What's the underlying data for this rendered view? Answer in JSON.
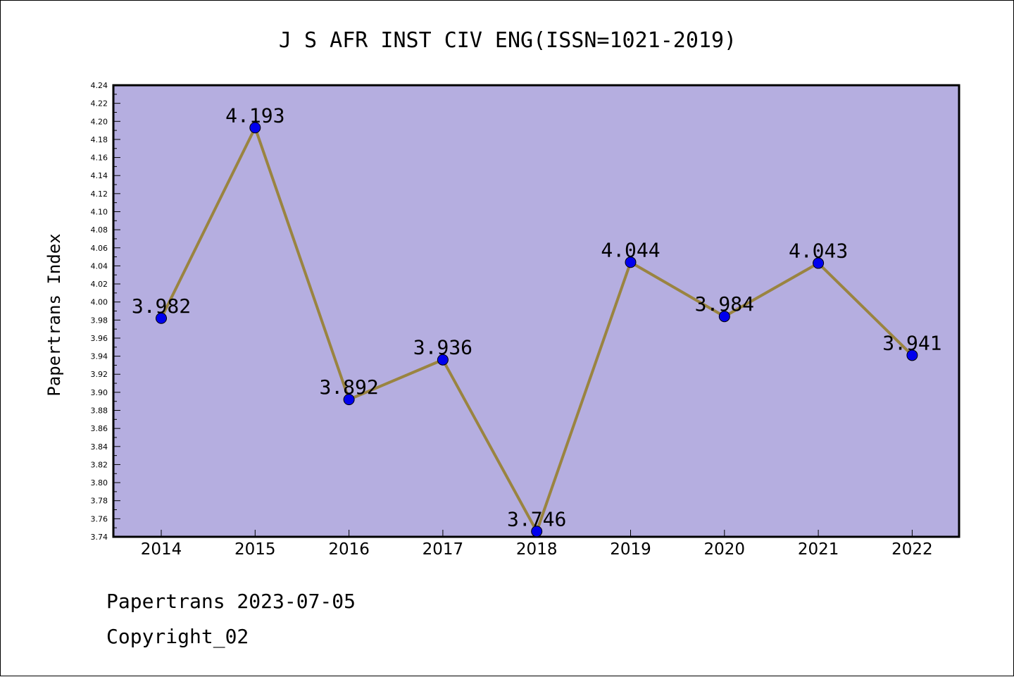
{
  "chart_data": {
    "type": "line",
    "title": "J S AFR INST CIV ENG(ISSN=1021-2019)",
    "xlabel": "",
    "ylabel": "Papertrans Index",
    "categories": [
      "2014",
      "2015",
      "2016",
      "2017",
      "2018",
      "2019",
      "2020",
      "2021",
      "2022"
    ],
    "values": [
      3.982,
      4.193,
      3.892,
      3.936,
      3.746,
      4.044,
      3.984,
      4.043,
      3.941
    ],
    "data_labels": [
      "3.982",
      "4.193",
      "3.892",
      "3.936",
      "3.746",
      "4.044",
      "3.984",
      "4.043",
      "3.941"
    ],
    "ylim": [
      3.74,
      4.24
    ],
    "y_tick_labels": [
      "3.74",
      "3.76",
      "3.78",
      "3.80",
      "3.82",
      "3.84",
      "3.86",
      "3.88",
      "3.90",
      "3.92",
      "3.94",
      "3.96",
      "3.98",
      "4.00",
      "4.02",
      "4.04",
      "4.06",
      "4.08",
      "4.10",
      "4.12",
      "4.14",
      "4.16",
      "4.18",
      "4.20",
      "4.22",
      "4.24"
    ],
    "grid": false,
    "colors": {
      "plot_background": "#b5aee0",
      "line": "#9a8440",
      "marker": "#0000ee"
    }
  },
  "footer": {
    "line1": "Papertrans 2023-07-05",
    "line2": "Copyright_02"
  }
}
